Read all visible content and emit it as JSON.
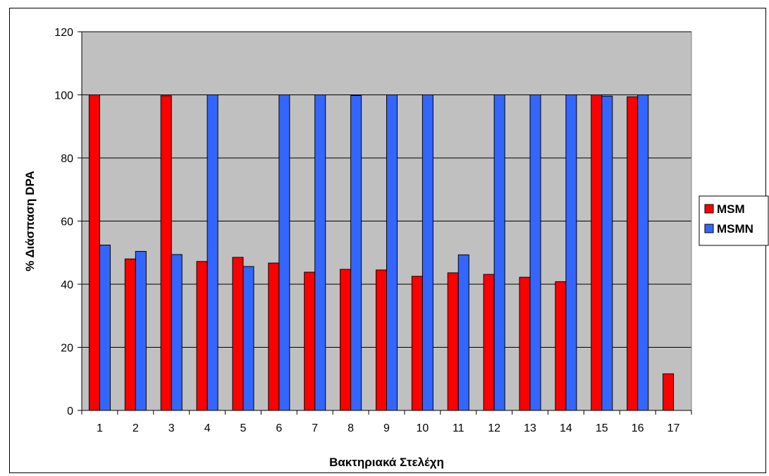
{
  "chart_data": {
    "type": "bar",
    "title": "",
    "xlabel": "Βακτηριακά Στελέχη",
    "ylabel": "% Διάσπαση DPA",
    "categories": [
      "1",
      "2",
      "3",
      "4",
      "5",
      "6",
      "7",
      "8",
      "9",
      "10",
      "11",
      "12",
      "13",
      "14",
      "15",
      "16",
      "17"
    ],
    "ylim": [
      0,
      120
    ],
    "yticks": [
      0,
      20,
      40,
      60,
      80,
      100,
      120
    ],
    "grid": true,
    "legend_position": "right",
    "plot_background": "#c0c0c0",
    "series": [
      {
        "name": "MSM",
        "color": "#ff0000",
        "values": [
          100,
          48,
          99.7,
          47.2,
          48.5,
          46.7,
          43.8,
          44.7,
          44.5,
          42.5,
          43.6,
          43.1,
          42.2,
          40.8,
          100,
          99.4,
          11.6
        ]
      },
      {
        "name": "MSMN",
        "color": "#3366ff",
        "values": [
          52.4,
          50.4,
          49.4,
          100,
          45.6,
          100,
          100,
          99.8,
          100,
          100,
          49.3,
          100,
          100,
          100,
          99.6,
          100,
          0
        ]
      }
    ]
  }
}
